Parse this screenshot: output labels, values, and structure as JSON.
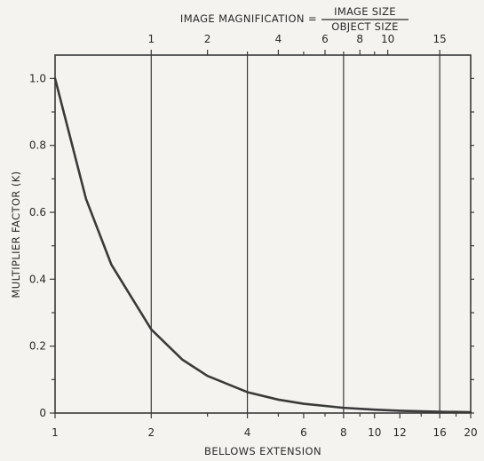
{
  "chart_data": {
    "type": "line",
    "xscale": "log",
    "xlabel": "BELLOWS EXTENSION",
    "ylabel": "MULTIPLIER FACTOR (K)",
    "top_axis_label": {
      "prefix": "IMAGE MAGNIFICATION =",
      "numerator": "IMAGE SIZE",
      "denominator": "OBJECT SIZE"
    },
    "xlim": [
      1,
      20
    ],
    "ylim": [
      0,
      1.07
    ],
    "x_ticks": [
      {
        "value": 1,
        "label": "1"
      },
      {
        "value": 2,
        "label": "2"
      },
      {
        "value": 4,
        "label": "4"
      },
      {
        "value": 6,
        "label": "6"
      },
      {
        "value": 8,
        "label": "8"
      },
      {
        "value": 10,
        "label": "10"
      },
      {
        "value": 12,
        "label": "12"
      },
      {
        "value": 16,
        "label": "16"
      },
      {
        "value": 20,
        "label": "20"
      }
    ],
    "x_minor_ticks": [
      3,
      5,
      7,
      9,
      14,
      18
    ],
    "y_ticks": [
      {
        "value": 0,
        "label": "0"
      },
      {
        "value": 0.2,
        "label": "0.2"
      },
      {
        "value": 0.4,
        "label": "0.4"
      },
      {
        "value": 0.6,
        "label": "0.6"
      },
      {
        "value": 0.8,
        "label": "0.8"
      },
      {
        "value": 1.0,
        "label": "1.0"
      }
    ],
    "y_minor_ticks": [
      0.1,
      0.3,
      0.5,
      0.7,
      0.9
    ],
    "top_ticks": [
      {
        "value": 2,
        "label": "1"
      },
      {
        "value": 3,
        "label": "2"
      },
      {
        "value": 5,
        "label": "4"
      },
      {
        "value": 7,
        "label": "6"
      },
      {
        "value": 9,
        "label": "8"
      },
      {
        "value": 11,
        "label": "10"
      },
      {
        "value": 16,
        "label": "15"
      }
    ],
    "top_minor_ticks": [
      4,
      6,
      8,
      10
    ],
    "vertical_gridlines": [
      2,
      4,
      8,
      16
    ],
    "series": [
      {
        "x": [
          1,
          1.25,
          1.5,
          2,
          2.5,
          3,
          4,
          5,
          6,
          8,
          10,
          12,
          16,
          20
        ],
        "y": [
          1.0,
          0.64,
          0.444,
          0.25,
          0.16,
          0.111,
          0.0625,
          0.04,
          0.0278,
          0.0156,
          0.01,
          0.0069,
          0.0039,
          0.0025
        ],
        "color": "#3a3a3a"
      }
    ]
  }
}
